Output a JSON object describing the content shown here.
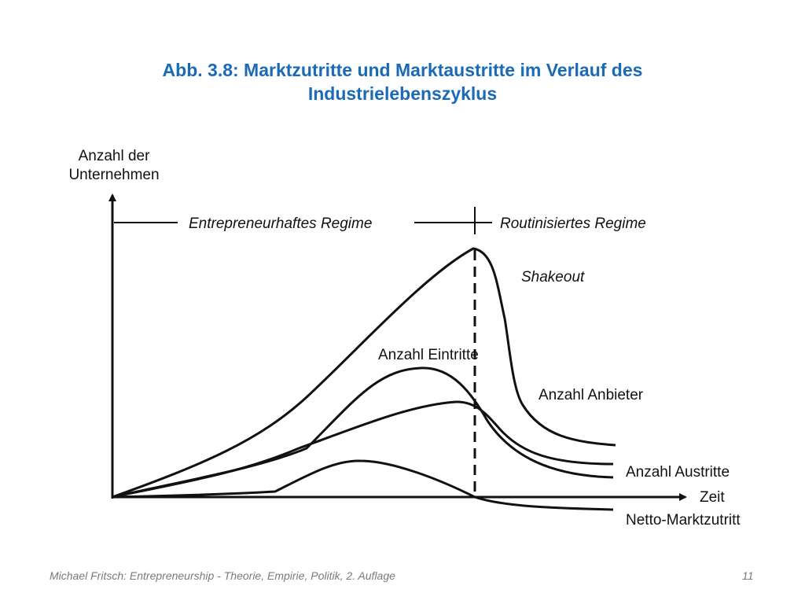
{
  "title": {
    "line1": "Abb. 3.8: Marktzutritte und Marktaustritte im Verlauf des",
    "line2": "Industrielebenszyklus"
  },
  "diagram": {
    "y_axis_label_line1": "Anzahl der",
    "y_axis_label_line2": "Unternehmen",
    "x_axis_label": "Zeit",
    "regime_left": "Entrepreneurhaftes Regime",
    "regime_right": "Routinisiertes Regime",
    "phase_label": "Shakeout",
    "curves": {
      "anbieter": "Anzahl Anbieter",
      "eintritte": "Anzahl Eintritte",
      "austritte": "Anzahl Austritte",
      "netto": "Netto-Marktzutritt"
    },
    "line_color": "#111111"
  },
  "footer": {
    "source": "Michael Fritsch: Entrepreneurship - Theorie, Empirie, Politik, 2. Auflage",
    "page_number": "11"
  }
}
